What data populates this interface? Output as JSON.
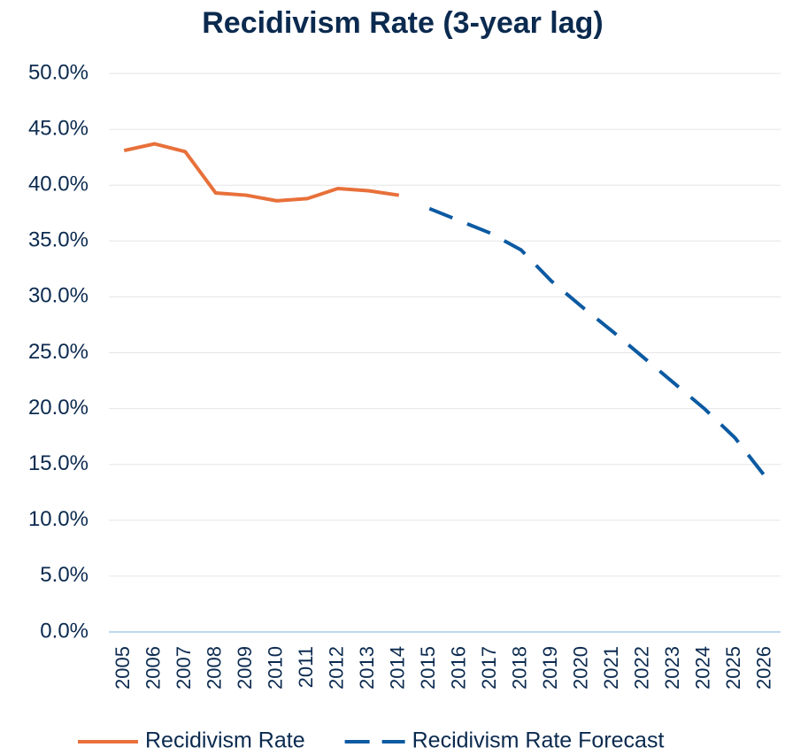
{
  "chart_data": {
    "type": "line",
    "title": "Recidivism Rate (3-year lag)",
    "categories": [
      "2005",
      "2006",
      "2007",
      "2008",
      "2009",
      "2010",
      "2011",
      "2012",
      "2013",
      "2014",
      "2015",
      "2016",
      "2017",
      "2018",
      "2019",
      "2020",
      "2021",
      "2022",
      "2023",
      "2024",
      "2025",
      "2026"
    ],
    "series": [
      {
        "name": "Recidivism Rate",
        "color": "#e8703a",
        "dashed": false,
        "values": [
          43.1,
          43.7,
          43.0,
          39.3,
          39.1,
          38.6,
          38.8,
          39.7,
          39.5,
          39.1,
          null,
          null,
          null,
          null,
          null,
          null,
          null,
          null,
          null,
          null,
          null,
          null
        ]
      },
      {
        "name": "Recidivism Rate Forecast",
        "color": "#0b5aa2",
        "dashed": true,
        "values": [
          null,
          null,
          null,
          null,
          null,
          null,
          null,
          null,
          null,
          null,
          37.9,
          36.8,
          35.7,
          34.2,
          31.4,
          29.1,
          26.9,
          24.6,
          22.3,
          20.0,
          17.4,
          13.9
        ]
      }
    ],
    "ylim": [
      0,
      50
    ],
    "yticks": [
      {
        "value": 0,
        "label": "0.0%"
      },
      {
        "value": 5,
        "label": "5.0%"
      },
      {
        "value": 10,
        "label": "10.0%"
      },
      {
        "value": 15,
        "label": "15.0%"
      },
      {
        "value": 20,
        "label": "20.0%"
      },
      {
        "value": 25,
        "label": "25.0%"
      },
      {
        "value": 30,
        "label": "30.0%"
      },
      {
        "value": 35,
        "label": "35.0%"
      },
      {
        "value": 40,
        "label": "40.0%"
      },
      {
        "value": 45,
        "label": "45.0%"
      },
      {
        "value": 50,
        "label": "50.0%"
      }
    ],
    "grid": true,
    "legend": "bottom"
  }
}
